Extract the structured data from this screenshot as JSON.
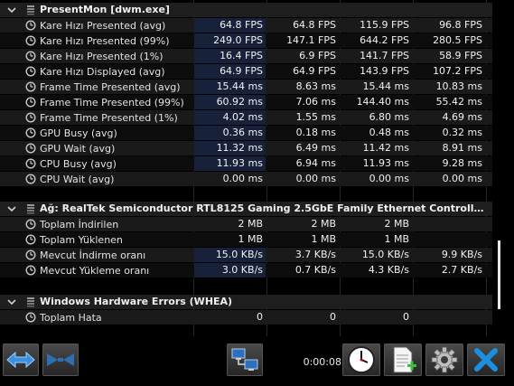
{
  "sections": [
    {
      "title": "PresentMon [dwm.exe]",
      "rows": [
        {
          "label": "Kare Hızı Presented (avg)",
          "values": [
            "64.8 FPS",
            "64.8 FPS",
            "115.9 FPS",
            "96.8 FPS"
          ]
        },
        {
          "label": "Kare Hızı Presented (99%)",
          "values": [
            "249.0 FPS",
            "147.1 FPS",
            "644.2 FPS",
            "280.5 FPS"
          ]
        },
        {
          "label": "Kare Hızı Presented (1%)",
          "values": [
            "16.4 FPS",
            "6.9 FPS",
            "141.7 FPS",
            "58.9 FPS"
          ]
        },
        {
          "label": "Kare Hızı Displayed (avg)",
          "values": [
            "64.9 FPS",
            "64.9 FPS",
            "143.9 FPS",
            "107.2 FPS"
          ]
        },
        {
          "label": "Frame Time Presented (avg)",
          "values": [
            "15.44 ms",
            "8.63 ms",
            "15.44 ms",
            "10.83 ms"
          ]
        },
        {
          "label": "Frame Time Presented (99%)",
          "values": [
            "60.92 ms",
            "7.06 ms",
            "144.40 ms",
            "55.42 ms"
          ]
        },
        {
          "label": "Frame Time Presented (1%)",
          "values": [
            "4.02 ms",
            "1.55 ms",
            "6.80 ms",
            "4.69 ms"
          ]
        },
        {
          "label": "GPU Busy (avg)",
          "values": [
            "0.36 ms",
            "0.18 ms",
            "0.48 ms",
            "0.32 ms"
          ]
        },
        {
          "label": "GPU Wait (avg)",
          "values": [
            "11.32 ms",
            "6.49 ms",
            "11.42 ms",
            "8.91 ms"
          ]
        },
        {
          "label": "CPU Busy (avg)",
          "values": [
            "11.93 ms",
            "6.94 ms",
            "11.93 ms",
            "9.28 ms"
          ]
        },
        {
          "label": "CPU Wait (avg)",
          "values": [
            "0.00 ms",
            "0.00 ms",
            "0.00 ms",
            "0.00 ms"
          ]
        }
      ]
    },
    {
      "title": "Ağ: RealTek Semiconductor RTL8125 Gaming 2.5GbE Family Ethernet Controller - Ethe...",
      "rows": [
        {
          "label": "Toplam İndirilen",
          "values": [
            "2 MB",
            "2 MB",
            "2 MB",
            ""
          ]
        },
        {
          "label": "Toplam Yüklenen",
          "values": [
            "1 MB",
            "1 MB",
            "1 MB",
            ""
          ]
        },
        {
          "label": "Mevcut İndirme oranı",
          "values": [
            "15.0 KB/s",
            "3.7 KB/s",
            "15.0 KB/s",
            "9.9 KB/s"
          ]
        },
        {
          "label": "Mevcut Yükleme oranı",
          "values": [
            "3.0 KB/s",
            "0.7 KB/s",
            "4.3 KB/s",
            "2.7 KB/s"
          ]
        }
      ]
    },
    {
      "title": "Windows Hardware Errors (WHEA)",
      "rows": [
        {
          "label": "Toplam Hata",
          "values": [
            "0",
            "0",
            "0",
            ""
          ]
        }
      ]
    }
  ],
  "toolbar": {
    "timer": "0:00:08"
  },
  "icons": {
    "collapse": "chevron-down-icon",
    "sensor_group": "sensor-stack-icon",
    "sensor": "clock-gauge-icon"
  },
  "colors": {
    "highlight": "#17223a",
    "background": "#000000",
    "close_blue": "#1e8fe0"
  }
}
